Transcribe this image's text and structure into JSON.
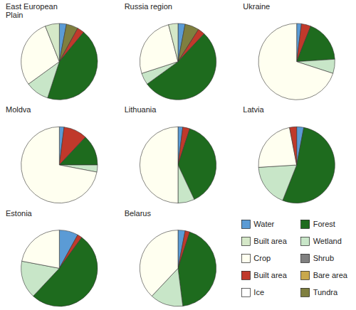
{
  "chart_data": [
    {
      "type": "pie",
      "title": "East European\nPlain",
      "values": [
        3,
        5,
        3,
        44,
        10,
        29,
        6
      ],
      "colors": [
        "#5b9bd5",
        "#7f7f3f",
        "#c0392b",
        "#1e6b1e",
        "#c8e6c8",
        "#fffff0",
        "#d5e8c8"
      ]
    },
    {
      "type": "pie",
      "title": "Russia region",
      "values": [
        3,
        6,
        3,
        53,
        5,
        26,
        4
      ],
      "colors": [
        "#5b9bd5",
        "#7f7f3f",
        "#c0392b",
        "#1e6b1e",
        "#c8e6c8",
        "#fffff0",
        "#d5e8c8"
      ]
    },
    {
      "type": "pie",
      "title": "Ukraine",
      "values": [
        2,
        4,
        18,
        6,
        70
      ],
      "colors": [
        "#5b9bd5",
        "#c0392b",
        "#1e6b1e",
        "#c8e6c8",
        "#fffff0"
      ]
    },
    {
      "type": "pie",
      "title": "Moldva",
      "values": [
        2,
        10,
        13,
        3,
        72
      ],
      "colors": [
        "#5b9bd5",
        "#c0392b",
        "#1e6b1e",
        "#c8e6c8",
        "#fffff0"
      ]
    },
    {
      "type": "pie",
      "title": "Lithuania",
      "values": [
        2,
        3,
        38,
        7,
        50
      ],
      "colors": [
        "#5b9bd5",
        "#c0392b",
        "#1e6b1e",
        "#c8e6c8",
        "#fffff0"
      ]
    },
    {
      "type": "pie",
      "title": "Latvia",
      "values": [
        3,
        53,
        18,
        23,
        3
      ],
      "colors": [
        "#5b9bd5",
        "#1e6b1e",
        "#c8e6c8",
        "#fffff0",
        "#c0392b"
      ]
    },
    {
      "type": "pie",
      "title": "Estonia",
      "values": [
        8,
        2,
        52,
        16,
        22
      ],
      "colors": [
        "#5b9bd5",
        "#c0392b",
        "#1e6b1e",
        "#c8e6c8",
        "#fffff0"
      ]
    },
    {
      "type": "pie",
      "title": "Belarus",
      "values": [
        3,
        2,
        43,
        14,
        38
      ],
      "colors": [
        "#5b9bd5",
        "#c0392b",
        "#1e6b1e",
        "#c8e6c8",
        "#fffff0"
      ]
    }
  ],
  "legend_items": [
    {
      "name": "Water",
      "color": "#5b9bd5"
    },
    {
      "name": "Forest",
      "color": "#1e6b1e"
    },
    {
      "name": "Built area",
      "color": "#d5e8c8"
    },
    {
      "name": "Wetland",
      "color": "#c8e6c8"
    },
    {
      "name": "Crop",
      "color": "#fffff0"
    },
    {
      "name": "Shrub",
      "color": "#808080"
    },
    {
      "name": "Built area",
      "color": "#c0392b"
    },
    {
      "name": "Bare area",
      "color": "#c8a84b"
    },
    {
      "name": "Ice",
      "color": "#ffffff"
    },
    {
      "name": "Tundra",
      "color": "#7f7f3f"
    }
  ]
}
